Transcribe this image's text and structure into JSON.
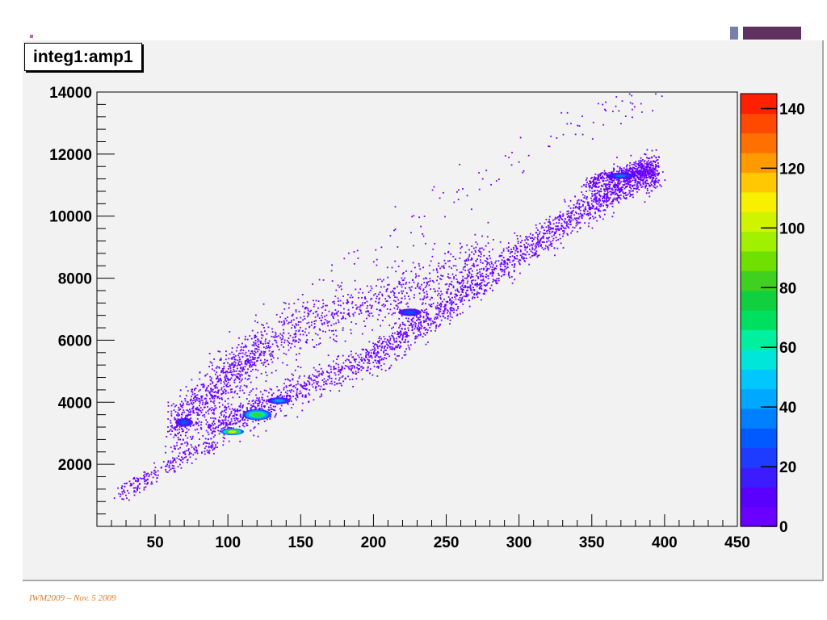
{
  "footer_text": "IWM2009 – Nov. 5 2009",
  "colors": {
    "panel_background": "#f2f2f2",
    "frame_background": "#f2f2f2",
    "marker": "#6a00ff",
    "footer": "#e07a20",
    "deco_small": "#7880a8",
    "deco_large": "#5e3160"
  },
  "chart_data": {
    "type": "heatmap",
    "title": "integ1:amp1",
    "xlabel": "",
    "ylabel": "",
    "xlim": [
      10,
      450
    ],
    "ylim": [
      0,
      14000
    ],
    "x_ticks": [
      50,
      100,
      150,
      200,
      250,
      300,
      350,
      400,
      450
    ],
    "y_ticks": [
      2000,
      4000,
      6000,
      8000,
      10000,
      12000,
      14000
    ],
    "x_minor_step": 10,
    "y_minor_step": 400,
    "colorbar": {
      "range": [
        0,
        145
      ],
      "ticks": [
        0,
        20,
        40,
        60,
        80,
        100,
        120,
        140
      ],
      "colors": [
        "#6a00ff",
        "#5a00ff",
        "#3c1cff",
        "#1e3cff",
        "#005aff",
        "#0080ff",
        "#00a8ff",
        "#00c8ff",
        "#00e6d8",
        "#00f0a0",
        "#00e060",
        "#10d040",
        "#40d020",
        "#70e000",
        "#a0f000",
        "#d0f400",
        "#f8f000",
        "#ffc800",
        "#ff9a00",
        "#ff7000",
        "#ff4800",
        "#ff2000"
      ]
    },
    "bands": [
      {
        "name": "main-band",
        "points": [
          [
            85,
            3050
          ],
          [
            130,
            4050
          ],
          [
            200,
            5500
          ],
          [
            250,
            7100
          ],
          [
            300,
            8850
          ],
          [
            350,
            10400
          ],
          [
            375,
            11200
          ],
          [
            395,
            11500
          ]
        ],
        "spread": 280,
        "count": 2600
      },
      {
        "name": "upper-band",
        "points": [
          [
            60,
            3100
          ],
          [
            80,
            3900
          ],
          [
            100,
            4900
          ],
          [
            120,
            5700
          ],
          [
            160,
            6600
          ],
          [
            220,
            7600
          ],
          [
            280,
            8700
          ]
        ],
        "spread": 450,
        "count": 1500
      },
      {
        "name": "lower-tail",
        "points": [
          [
            25,
            1100
          ],
          [
            45,
            1600
          ],
          [
            70,
            2200
          ],
          [
            90,
            2700
          ]
        ],
        "spread": 140,
        "count": 220
      },
      {
        "name": "sparse-halo",
        "points": [
          [
            150,
            7000
          ],
          [
            200,
            9000
          ],
          [
            250,
            10500
          ],
          [
            300,
            12000
          ],
          [
            350,
            13300
          ],
          [
            400,
            14000
          ]
        ],
        "spread": 350,
        "count": 120
      },
      {
        "name": "top-end-cluster",
        "points": [
          [
            345,
            11050
          ],
          [
            365,
            11350
          ],
          [
            390,
            11550
          ]
        ],
        "spread": 120,
        "count": 260
      }
    ],
    "hotspots": [
      {
        "x": 103,
        "y": 3050,
        "count": 110,
        "rx": 8,
        "ry": 110
      },
      {
        "x": 120,
        "y": 3600,
        "count": 80,
        "rx": 10,
        "ry": 180
      },
      {
        "x": 135,
        "y": 4050,
        "count": 45,
        "rx": 8,
        "ry": 110
      },
      {
        "x": 70,
        "y": 3350,
        "count": 30,
        "rx": 6,
        "ry": 140
      },
      {
        "x": 225,
        "y": 6900,
        "count": 30,
        "rx": 8,
        "ry": 120
      },
      {
        "x": 370,
        "y": 11300,
        "count": 35,
        "rx": 10,
        "ry": 100
      }
    ]
  }
}
